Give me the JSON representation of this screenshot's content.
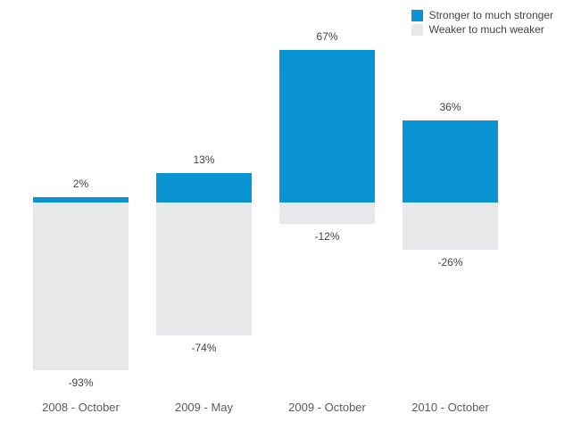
{
  "chart_data": {
    "type": "bar",
    "subtype": "diverging-stacked",
    "title": "",
    "categories": [
      "2008 - October",
      "2009 - May",
      "2009 - October",
      "2010 - October"
    ],
    "series": [
      {
        "name": "Stronger to much stronger",
        "color": "#0a94d3",
        "values": [
          2,
          13,
          67,
          36
        ]
      },
      {
        "name": "Weaker to much weaker",
        "color": "#e6e8e9",
        "values": [
          -93,
          -74,
          -12,
          -26
        ]
      }
    ],
    "value_suffix": "%",
    "xlabel": "",
    "ylabel": "",
    "grid": false,
    "axes_hidden": true,
    "legend_position": "top-right",
    "label_color": "#3f4347",
    "category_label_color": "#565c61",
    "background_color": "#ffffff"
  }
}
